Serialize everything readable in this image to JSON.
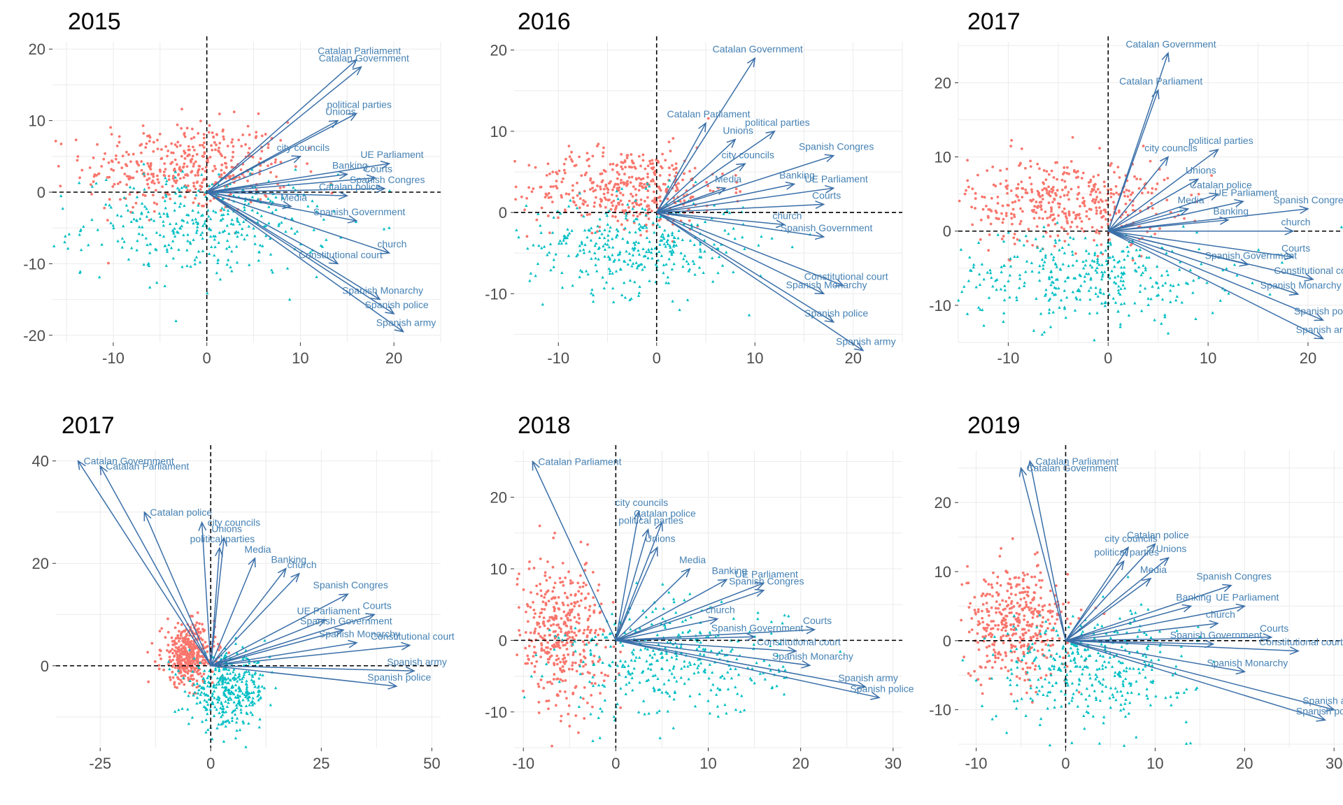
{
  "style": {
    "group_colors": [
      "#F8766D",
      "#00BFC4"
    ],
    "arrow_color": "#3A6FA8",
    "label_color": "#4682B4",
    "grid_color": "#EBEBEB"
  },
  "chart_data": [
    {
      "type": "scatter",
      "title": "2015",
      "xlim": [
        -16.5,
        25
      ],
      "ylim": [
        -21,
        21
      ],
      "xticks": [
        -10,
        0,
        10,
        20
      ],
      "yticks": [
        -20,
        -10,
        0,
        10,
        20
      ],
      "points": {
        "groupA": {
          "cx": -2,
          "cy": 3.5,
          "sx": 5.5,
          "sy": 3.2,
          "n": 420
        },
        "groupB": {
          "cx": 0,
          "cy": -4.5,
          "sx": 6.5,
          "sy": 3.5,
          "n": 360
        }
      },
      "vectors": [
        {
          "label": "Catalan Parliament",
          "x": 16,
          "y": 18.5
        },
        {
          "label": "Catalan Government",
          "x": 16.5,
          "y": 17.5
        },
        {
          "label": "political parties",
          "x": 16,
          "y": 11
        },
        {
          "label": "Unions",
          "x": 14,
          "y": 10
        },
        {
          "label": "city councils",
          "x": 10,
          "y": 5
        },
        {
          "label": "UE Parliament",
          "x": 19.5,
          "y": 4
        },
        {
          "label": "Banking",
          "x": 15,
          "y": 2.5
        },
        {
          "label": "Courts",
          "x": 18,
          "y": 2
        },
        {
          "label": "Spanish Congres",
          "x": 19,
          "y": 0.5
        },
        {
          "label": "Catalan police",
          "x": 15,
          "y": -0.5
        },
        {
          "label": "Media",
          "x": 9,
          "y": -2
        },
        {
          "label": "Spanish Government",
          "x": 16,
          "y": -4
        },
        {
          "label": "church",
          "x": 19.5,
          "y": -8.5
        },
        {
          "label": "Constitutional court",
          "x": 14,
          "y": -10
        },
        {
          "label": "Spanish Monarchy",
          "x": 18.5,
          "y": -15
        },
        {
          "label": "Spanish police",
          "x": 20,
          "y": -17
        },
        {
          "label": "Spanish army",
          "x": 21,
          "y": -19.5
        }
      ]
    },
    {
      "type": "scatter",
      "title": "2016",
      "xlim": [
        -14.5,
        25
      ],
      "ylim": [
        -16,
        21
      ],
      "xticks": [
        -10,
        0,
        10,
        20
      ],
      "yticks": [
        -10,
        0,
        10,
        20
      ],
      "points": {
        "groupA": {
          "cx": -3,
          "cy": 3,
          "sx": 5,
          "sy": 2.5,
          "n": 420
        },
        "groupB": {
          "cx": -2,
          "cy": -4,
          "sx": 5.5,
          "sy": 3,
          "n": 360
        }
      },
      "vectors": [
        {
          "label": "Catalan Government",
          "x": 10,
          "y": 19
        },
        {
          "label": "Catalan Parliament",
          "x": 5,
          "y": 11
        },
        {
          "label": "Unions",
          "x": 8,
          "y": 9
        },
        {
          "label": "political parties",
          "x": 12,
          "y": 10
        },
        {
          "label": "city councils",
          "x": 9,
          "y": 6
        },
        {
          "label": "Spanish Congres",
          "x": 18,
          "y": 7
        },
        {
          "label": "Media",
          "x": 7,
          "y": 3
        },
        {
          "label": "Banking",
          "x": 14,
          "y": 3.5
        },
        {
          "label": "UE Parliament",
          "x": 18,
          "y": 3
        },
        {
          "label": "Courts",
          "x": 17,
          "y": 1
        },
        {
          "label": "church",
          "x": 13,
          "y": -1.5
        },
        {
          "label": "Spanish Government",
          "x": 17,
          "y": -3
        },
        {
          "label": "Constitutional court",
          "x": 19,
          "y": -9
        },
        {
          "label": "Spanish Monarchy",
          "x": 17,
          "y": -10
        },
        {
          "label": "Spanish police",
          "x": 18,
          "y": -13.5
        },
        {
          "label": "Spanish army",
          "x": 21,
          "y": -17
        }
      ]
    },
    {
      "type": "scatter",
      "title": "2017",
      "xlim": [
        -15,
        23.5
      ],
      "ylim": [
        -15,
        25.5
      ],
      "xticks": [
        -10,
        0,
        10,
        20
      ],
      "yticks": [
        -10,
        0,
        10,
        20
      ],
      "points": {
        "groupA": {
          "cx": -4,
          "cy": 4,
          "sx": 5,
          "sy": 3,
          "n": 420
        },
        "groupB": {
          "cx": -2,
          "cy": -6,
          "sx": 7,
          "sy": 3,
          "n": 360
        }
      },
      "vectors": [
        {
          "label": "Catalan Government",
          "x": 6,
          "y": 24
        },
        {
          "label": "Catalan Parliament",
          "x": 5,
          "y": 19
        },
        {
          "label": "city councils",
          "x": 6,
          "y": 10
        },
        {
          "label": "political parties",
          "x": 11,
          "y": 11
        },
        {
          "label": "Unions",
          "x": 9,
          "y": 7
        },
        {
          "label": "Catalan police",
          "x": 11,
          "y": 5
        },
        {
          "label": "UE Parliament",
          "x": 13.5,
          "y": 4
        },
        {
          "label": "Spanish Congres",
          "x": 20,
          "y": 3
        },
        {
          "label": "Media",
          "x": 8,
          "y": 3
        },
        {
          "label": "Banking",
          "x": 12,
          "y": 1.5
        },
        {
          "label": "church",
          "x": 18.5,
          "y": 0
        },
        {
          "label": "Courts",
          "x": 18.5,
          "y": -3.5
        },
        {
          "label": "Spanish Government",
          "x": 14,
          "y": -4.5
        },
        {
          "label": "Constitutional court",
          "x": 20.5,
          "y": -6.5
        },
        {
          "label": "Spanish Monarchy",
          "x": 19,
          "y": -8.5
        },
        {
          "label": "Spanish police",
          "x": 21.5,
          "y": -12
        },
        {
          "label": "Spanish army",
          "x": 21.5,
          "y": -14.5
        }
      ]
    },
    {
      "type": "scatter",
      "title": "2017",
      "xlim": [
        -35,
        52
      ],
      "ylim": [
        -16,
        42
      ],
      "xticks": [
        -25,
        0,
        25,
        50
      ],
      "yticks": [
        0,
        20,
        40
      ],
      "points": {
        "groupA": {
          "cx": -5,
          "cy": 2,
          "sx": 3,
          "sy": 3,
          "n": 420
        },
        "groupB": {
          "cx": 4,
          "cy": -5,
          "sx": 4.5,
          "sy": 3.5,
          "n": 360
        }
      },
      "vectors": [
        {
          "label": "Catalan Government",
          "x": -30,
          "y": 40
        },
        {
          "label": "Catalan Parliament",
          "x": -25,
          "y": 39
        },
        {
          "label": "Catalan police",
          "x": -15,
          "y": 30
        },
        {
          "label": "city councils",
          "x": -2,
          "y": 28
        },
        {
          "label": "Unions",
          "x": 3,
          "y": 25
        },
        {
          "label": "political parties",
          "x": 2,
          "y": 23
        },
        {
          "label": "Media",
          "x": 10,
          "y": 21
        },
        {
          "label": "church",
          "x": 20,
          "y": 18
        },
        {
          "label": "Banking",
          "x": 17,
          "y": 19
        },
        {
          "label": "Spanish Congres",
          "x": 31,
          "y": 14
        },
        {
          "label": "UE Parliament",
          "x": 26,
          "y": 9
        },
        {
          "label": "Courts",
          "x": 37,
          "y": 10
        },
        {
          "label": "Spanish Government",
          "x": 30,
          "y": 7
        },
        {
          "label": "Spanish Monarchy",
          "x": 33,
          "y": 4.5
        },
        {
          "label": "Constitutional court",
          "x": 45,
          "y": 4
        },
        {
          "label": "Spanish army",
          "x": 46,
          "y": -1
        },
        {
          "label": "Spanish police",
          "x": 42,
          "y": -4
        }
      ]
    },
    {
      "type": "scatter",
      "title": "2018",
      "xlim": [
        -11,
        31
      ],
      "ylim": [
        -15,
        26.5
      ],
      "xticks": [
        -10,
        0,
        10,
        20,
        30
      ],
      "yticks": [
        -10,
        0,
        10,
        20
      ],
      "points": {
        "groupA": {
          "cx": -6,
          "cy": 1,
          "sx": 2.5,
          "sy": 5,
          "n": 420
        },
        "groupB": {
          "cx": 6,
          "cy": -3,
          "sx": 6,
          "sy": 4,
          "n": 360
        }
      },
      "vectors": [
        {
          "label": "Catalan Parliament",
          "x": -9,
          "y": 25
        },
        {
          "label": "city councils",
          "x": 2.5,
          "y": 18
        },
        {
          "label": "Catalan police",
          "x": 5,
          "y": 16.5
        },
        {
          "label": "political parties",
          "x": 3.5,
          "y": 15.5
        },
        {
          "label": "Unions",
          "x": 4.5,
          "y": 13
        },
        {
          "label": "Media",
          "x": 8,
          "y": 10
        },
        {
          "label": "Banking",
          "x": 12,
          "y": 8.5
        },
        {
          "label": "UE Parliament",
          "x": 16,
          "y": 8
        },
        {
          "label": "Spanish Congres",
          "x": 16,
          "y": 7
        },
        {
          "label": "church",
          "x": 11,
          "y": 3
        },
        {
          "label": "Courts",
          "x": 21.5,
          "y": 1.5
        },
        {
          "label": "Spanish Government",
          "x": 15,
          "y": 0.5
        },
        {
          "label": "Constitutional court",
          "x": 19.5,
          "y": -1.5
        },
        {
          "label": "Spanish Monarchy",
          "x": 21,
          "y": -3.5
        },
        {
          "label": "Spanish army",
          "x": 27,
          "y": -6.5
        },
        {
          "label": "Spanish police",
          "x": 28.5,
          "y": -8
        }
      ]
    },
    {
      "type": "scatter",
      "title": "2019",
      "xlim": [
        -12,
        31
      ],
      "ylim": [
        -15.5,
        27.5
      ],
      "xticks": [
        -10,
        0,
        10,
        20,
        30
      ],
      "yticks": [
        -10,
        0,
        10,
        20
      ],
      "points": {
        "groupA": {
          "cx": -5.5,
          "cy": 2.5,
          "sx": 3,
          "sy": 4,
          "n": 420
        },
        "groupB": {
          "cx": 3,
          "cy": -4,
          "sx": 5.5,
          "sy": 4,
          "n": 360
        }
      },
      "vectors": [
        {
          "label": "Catalan Parliament",
          "x": -4,
          "y": 26
        },
        {
          "label": "Catalan Government",
          "x": -5,
          "y": 25
        },
        {
          "label": "city councils",
          "x": 7,
          "y": 13.5
        },
        {
          "label": "Catalan police",
          "x": 10,
          "y": 14
        },
        {
          "label": "political parties",
          "x": 6.5,
          "y": 11.5
        },
        {
          "label": "Unions",
          "x": 11.5,
          "y": 12
        },
        {
          "label": "Media",
          "x": 9.5,
          "y": 9
        },
        {
          "label": "Spanish Congres",
          "x": 18.5,
          "y": 8
        },
        {
          "label": "Banking",
          "x": 14,
          "y": 5
        },
        {
          "label": "UE Parliament",
          "x": 20,
          "y": 5
        },
        {
          "label": "church",
          "x": 17,
          "y": 2.5
        },
        {
          "label": "Courts",
          "x": 23,
          "y": 0.5
        },
        {
          "label": "Spanish Government",
          "x": 16.5,
          "y": -0.5
        },
        {
          "label": "Constitutional court",
          "x": 26,
          "y": -1.5
        },
        {
          "label": "Spanish Monarchy",
          "x": 20,
          "y": -4.5
        },
        {
          "label": "Spanish army",
          "x": 30,
          "y": -10
        },
        {
          "label": "Spanish police",
          "x": 29,
          "y": -11.5
        }
      ]
    }
  ]
}
